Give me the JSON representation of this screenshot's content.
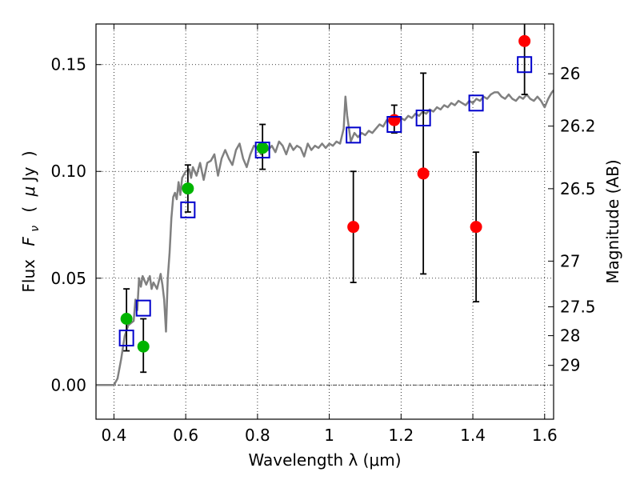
{
  "chart_data": {
    "type": "scatter",
    "xlabel": "Wavelength  λ (μm)",
    "ylabel": "Flux  F_ν  ( μJy )",
    "ylabel_parts": {
      "flux": "Flux",
      "f": "F",
      "nu": "ν",
      "open": "(",
      "mu": "μ",
      "jy": "Jy",
      "close": ")"
    },
    "ylabel_right": "Magnitude (AB)",
    "xlim": [
      0.35,
      1.625
    ],
    "ylim": [
      -0.016,
      0.169
    ],
    "x_ticks": [
      0.4,
      0.6,
      0.8,
      1.0,
      1.2,
      1.4,
      1.6
    ],
    "x_tick_labels": [
      "0.4",
      "0.6",
      "0.8",
      "1",
      "1.2",
      "1.4",
      "1.6"
    ],
    "y_ticks": [
      0.0,
      0.05,
      0.1,
      0.15
    ],
    "y_tick_labels": [
      "0.00",
      "0.05",
      "0.10",
      "0.15"
    ],
    "right_ticks": [
      {
        "label": "26",
        "flux": 0.1457
      },
      {
        "label": "26.2",
        "flux": 0.1212
      },
      {
        "label": "26.5",
        "flux": 0.0919
      },
      {
        "label": "27",
        "flux": 0.058
      },
      {
        "label": "27.5",
        "flux": 0.0366
      },
      {
        "label": "28",
        "flux": 0.0231
      },
      {
        "label": "29",
        "flux": 0.0092
      }
    ],
    "grid": true,
    "zero_line": 0.0,
    "series": [
      {
        "marker": "circle",
        "color": "#00b400",
        "points": [
          {
            "x": 0.435,
            "y": 0.031,
            "lo": 0.016,
            "hi": 0.045
          },
          {
            "x": 0.482,
            "y": 0.018,
            "lo": 0.006,
            "hi": 0.031
          },
          {
            "x": 0.606,
            "y": 0.092,
            "lo": 0.081,
            "hi": 0.103
          },
          {
            "x": 0.814,
            "y": 0.111,
            "lo": 0.101,
            "hi": 0.122
          }
        ]
      },
      {
        "marker": "circle",
        "color": "#ff0000",
        "points": [
          {
            "x": 1.067,
            "y": 0.074,
            "lo": 0.048,
            "hi": 0.1
          },
          {
            "x": 1.181,
            "y": 0.124,
            "lo": 0.118,
            "hi": 0.131
          },
          {
            "x": 1.262,
            "y": 0.099,
            "lo": 0.052,
            "hi": 0.146
          },
          {
            "x": 1.409,
            "y": 0.074,
            "lo": 0.039,
            "hi": 0.109
          },
          {
            "x": 1.544,
            "y": 0.161,
            "lo": 0.136,
            "hi": 0.17
          }
        ]
      },
      {
        "marker": "square-open",
        "color": "#0000cc",
        "points": [
          {
            "x": 0.435,
            "y": 0.022
          },
          {
            "x": 0.482,
            "y": 0.036
          },
          {
            "x": 0.606,
            "y": 0.082
          },
          {
            "x": 0.814,
            "y": 0.11
          },
          {
            "x": 1.067,
            "y": 0.117
          },
          {
            "x": 1.181,
            "y": 0.122
          },
          {
            "x": 1.262,
            "y": 0.125
          },
          {
            "x": 1.409,
            "y": 0.132
          },
          {
            "x": 1.544,
            "y": 0.15
          }
        ]
      },
      {
        "marker": "line",
        "color": "#808080",
        "points": [
          [
            0.35,
            0.0
          ],
          [
            0.4,
            0.0
          ],
          [
            0.41,
            0.003
          ],
          [
            0.42,
            0.012
          ],
          [
            0.43,
            0.023
          ],
          [
            0.44,
            0.028
          ],
          [
            0.455,
            0.03
          ],
          [
            0.46,
            0.04
          ],
          [
            0.465,
            0.035
          ],
          [
            0.47,
            0.05
          ],
          [
            0.475,
            0.046
          ],
          [
            0.48,
            0.051
          ],
          [
            0.49,
            0.047
          ],
          [
            0.5,
            0.051
          ],
          [
            0.505,
            0.045
          ],
          [
            0.51,
            0.048
          ],
          [
            0.52,
            0.045
          ],
          [
            0.53,
            0.052
          ],
          [
            0.535,
            0.047
          ],
          [
            0.54,
            0.04
          ],
          [
            0.545,
            0.025
          ],
          [
            0.55,
            0.05
          ],
          [
            0.555,
            0.062
          ],
          [
            0.56,
            0.078
          ],
          [
            0.565,
            0.088
          ],
          [
            0.57,
            0.09
          ],
          [
            0.575,
            0.087
          ],
          [
            0.58,
            0.095
          ],
          [
            0.585,
            0.089
          ],
          [
            0.59,
            0.097
          ],
          [
            0.6,
            0.1
          ],
          [
            0.61,
            0.101
          ],
          [
            0.615,
            0.097
          ],
          [
            0.62,
            0.102
          ],
          [
            0.63,
            0.098
          ],
          [
            0.64,
            0.104
          ],
          [
            0.65,
            0.096
          ],
          [
            0.66,
            0.104
          ],
          [
            0.67,
            0.105
          ],
          [
            0.68,
            0.108
          ],
          [
            0.69,
            0.098
          ],
          [
            0.7,
            0.106
          ],
          [
            0.71,
            0.11
          ],
          [
            0.72,
            0.106
          ],
          [
            0.73,
            0.103
          ],
          [
            0.74,
            0.11
          ],
          [
            0.75,
            0.113
          ],
          [
            0.76,
            0.106
          ],
          [
            0.77,
            0.102
          ],
          [
            0.78,
            0.108
          ],
          [
            0.79,
            0.112
          ],
          [
            0.8,
            0.111
          ],
          [
            0.81,
            0.108
          ],
          [
            0.82,
            0.113
          ],
          [
            0.83,
            0.11
          ],
          [
            0.84,
            0.112
          ],
          [
            0.85,
            0.109
          ],
          [
            0.86,
            0.114
          ],
          [
            0.87,
            0.112
          ],
          [
            0.88,
            0.108
          ],
          [
            0.89,
            0.113
          ],
          [
            0.9,
            0.11
          ],
          [
            0.91,
            0.112
          ],
          [
            0.92,
            0.111
          ],
          [
            0.93,
            0.107
          ],
          [
            0.94,
            0.113
          ],
          [
            0.95,
            0.11
          ],
          [
            0.96,
            0.112
          ],
          [
            0.97,
            0.111
          ],
          [
            0.98,
            0.113
          ],
          [
            0.99,
            0.111
          ],
          [
            1.0,
            0.113
          ],
          [
            1.01,
            0.112
          ],
          [
            1.02,
            0.114
          ],
          [
            1.03,
            0.113
          ],
          [
            1.04,
            0.12
          ],
          [
            1.045,
            0.135
          ],
          [
            1.05,
            0.126
          ],
          [
            1.06,
            0.114
          ],
          [
            1.07,
            0.118
          ],
          [
            1.08,
            0.116
          ],
          [
            1.09,
            0.118
          ],
          [
            1.1,
            0.117
          ],
          [
            1.11,
            0.119
          ],
          [
            1.12,
            0.118
          ],
          [
            1.13,
            0.12
          ],
          [
            1.14,
            0.122
          ],
          [
            1.15,
            0.121
          ],
          [
            1.16,
            0.124
          ],
          [
            1.17,
            0.123
          ],
          [
            1.18,
            0.122
          ],
          [
            1.19,
            0.123
          ],
          [
            1.2,
            0.125
          ],
          [
            1.21,
            0.124
          ],
          [
            1.22,
            0.126
          ],
          [
            1.23,
            0.125
          ],
          [
            1.24,
            0.127
          ],
          [
            1.25,
            0.126
          ],
          [
            1.26,
            0.128
          ],
          [
            1.27,
            0.127
          ],
          [
            1.28,
            0.129
          ],
          [
            1.29,
            0.128
          ],
          [
            1.3,
            0.13
          ],
          [
            1.31,
            0.129
          ],
          [
            1.32,
            0.131
          ],
          [
            1.33,
            0.13
          ],
          [
            1.34,
            0.132
          ],
          [
            1.35,
            0.131
          ],
          [
            1.36,
            0.133
          ],
          [
            1.37,
            0.132
          ],
          [
            1.38,
            0.131
          ],
          [
            1.39,
            0.133
          ],
          [
            1.4,
            0.132
          ],
          [
            1.41,
            0.134
          ],
          [
            1.42,
            0.133
          ],
          [
            1.43,
            0.135
          ],
          [
            1.44,
            0.134
          ],
          [
            1.45,
            0.136
          ],
          [
            1.46,
            0.137
          ],
          [
            1.47,
            0.137
          ],
          [
            1.48,
            0.135
          ],
          [
            1.49,
            0.134
          ],
          [
            1.5,
            0.136
          ],
          [
            1.51,
            0.134
          ],
          [
            1.52,
            0.133
          ],
          [
            1.53,
            0.135
          ],
          [
            1.54,
            0.134
          ],
          [
            1.55,
            0.136
          ],
          [
            1.56,
            0.134
          ],
          [
            1.57,
            0.133
          ],
          [
            1.58,
            0.135
          ],
          [
            1.59,
            0.133
          ],
          [
            1.6,
            0.13
          ],
          [
            1.61,
            0.134
          ],
          [
            1.62,
            0.137
          ],
          [
            1.625,
            0.138
          ]
        ]
      }
    ]
  }
}
